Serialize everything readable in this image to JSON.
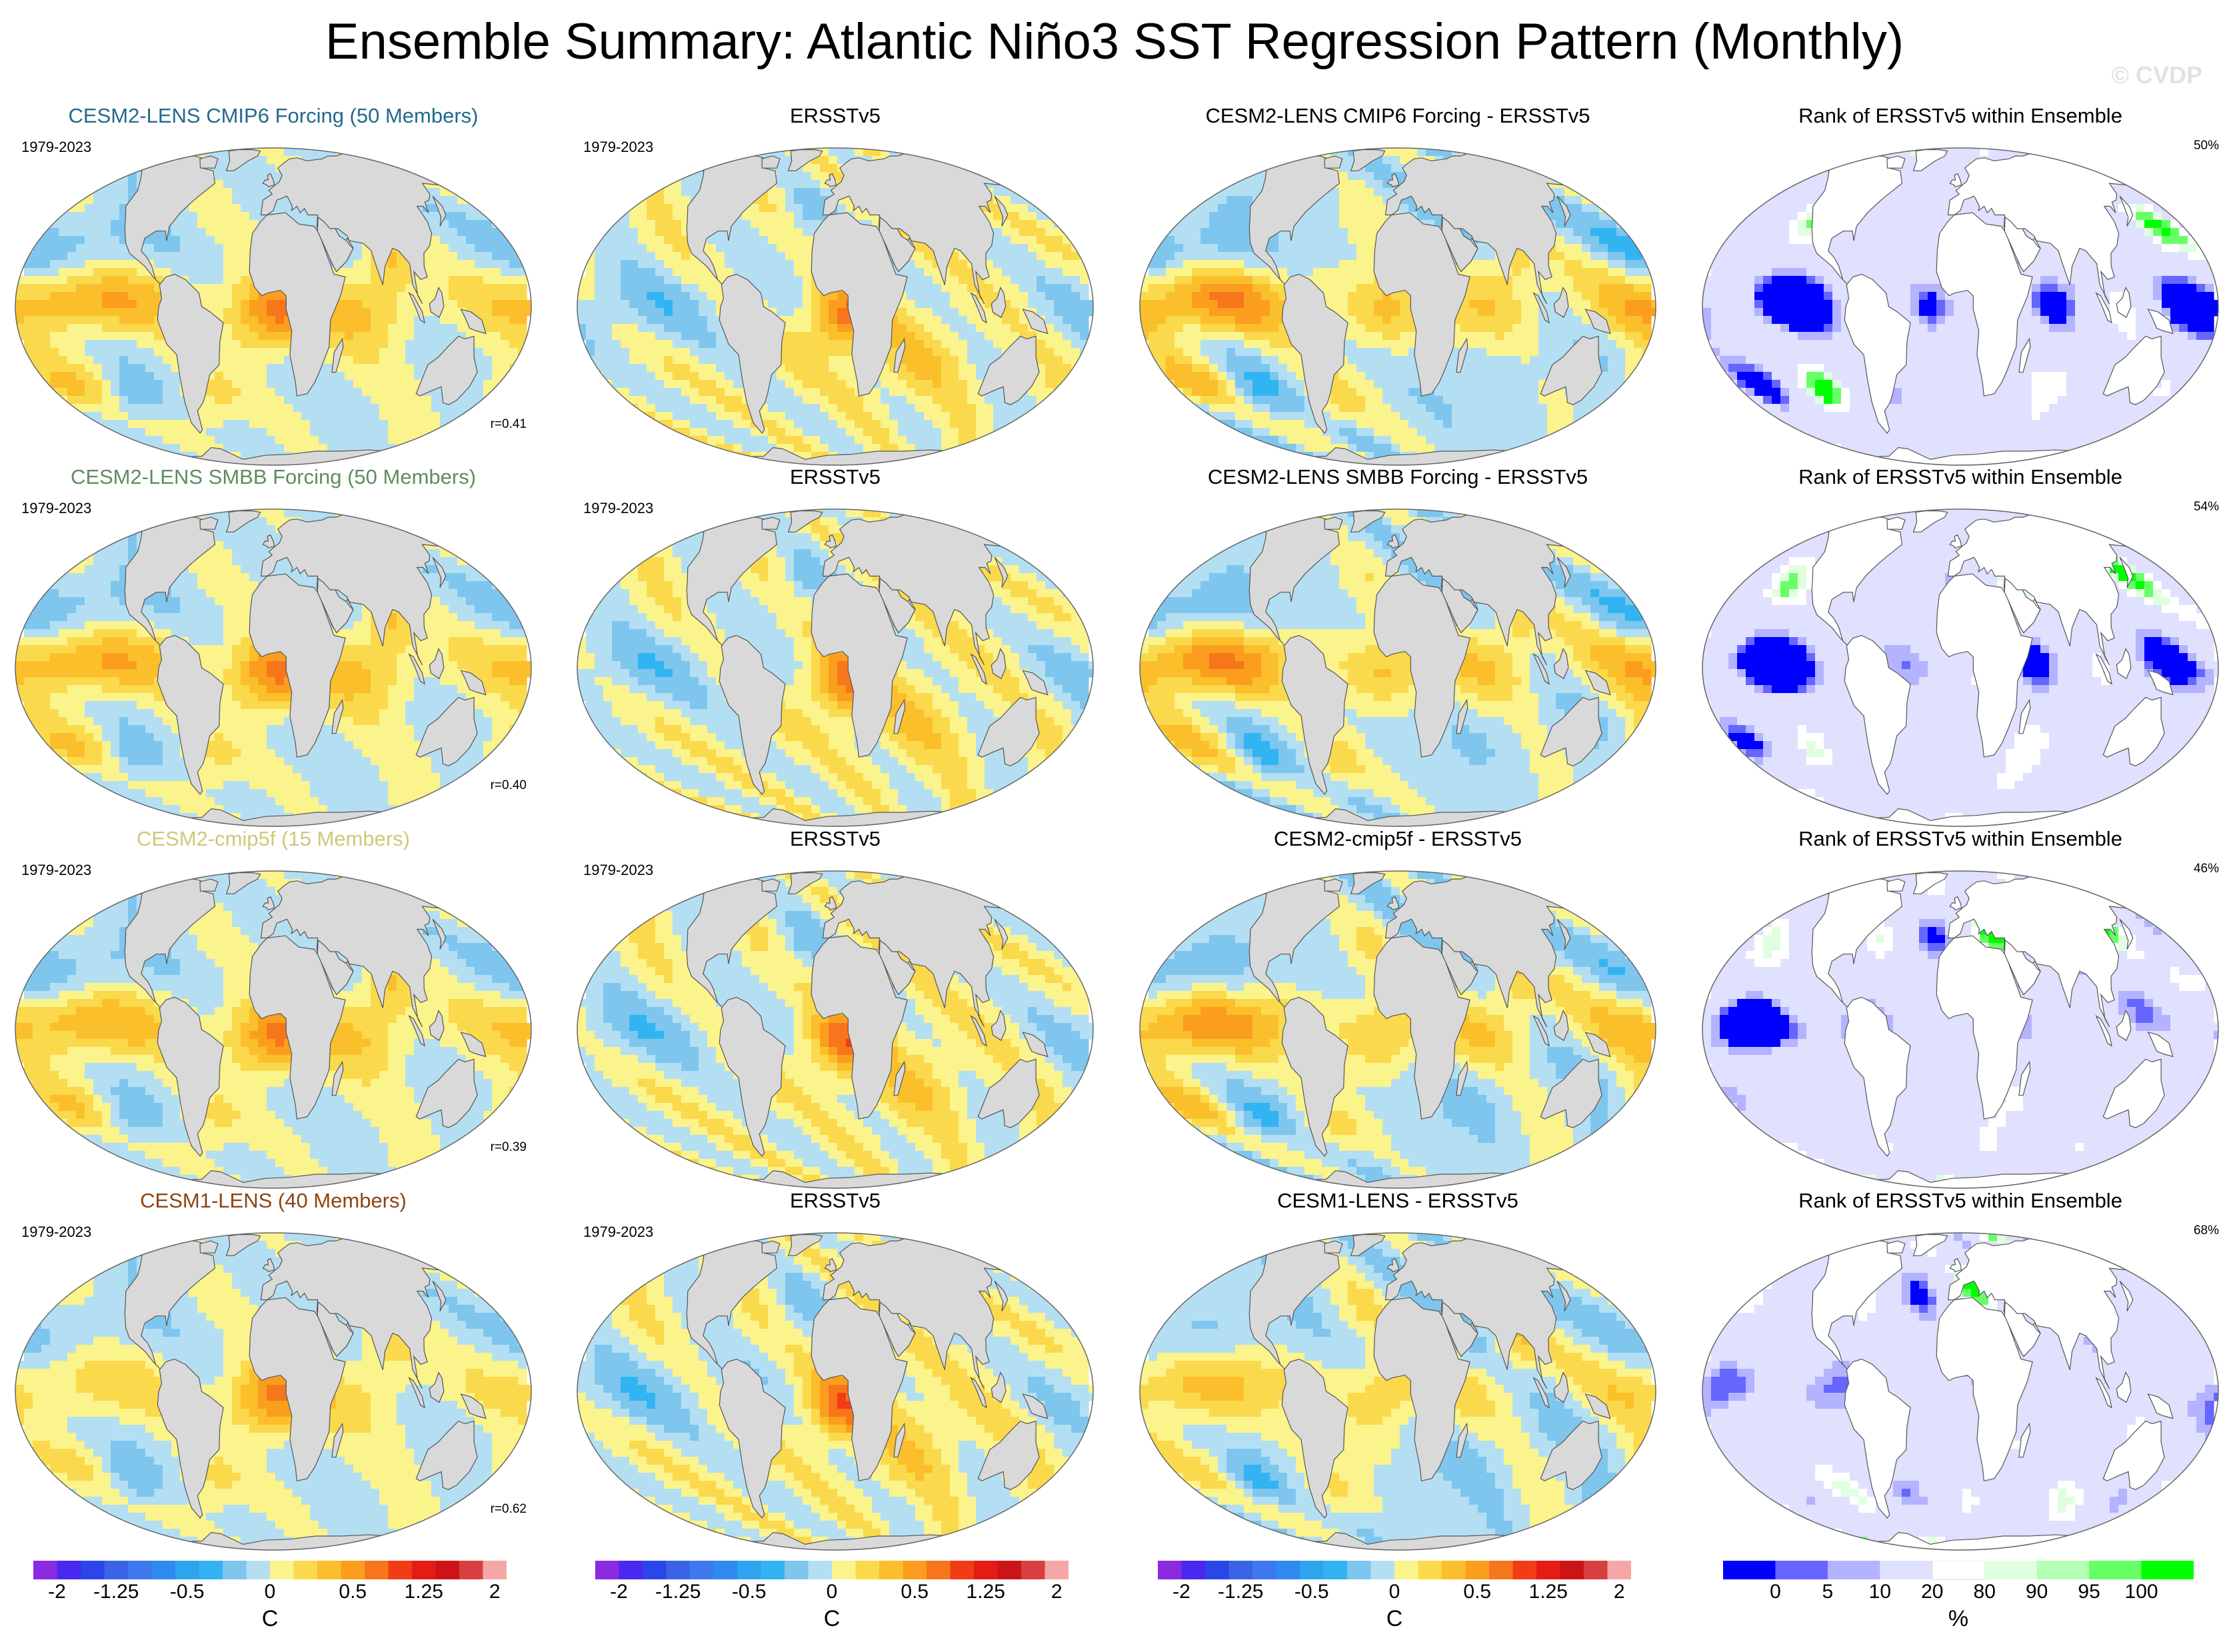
{
  "title": "Ensemble Summary: Atlantic Niño3 SST Regression Pattern (Monthly)",
  "watermark": "© CVDP",
  "period": "1979-2023",
  "rows": [
    {
      "model": "CESM2-LENS CMIP6 Forcing (50 Members)",
      "model_color": "#23698c",
      "obs": "ERSSTv5",
      "diff": "CESM2-LENS CMIP6 Forcing - ERSSTv5",
      "rank": "Rank of ERSSTv5 within Ensemble",
      "corr": "r=0.41",
      "pct": "50%"
    },
    {
      "model": "CESM2-LENS SMBB Forcing (50 Members)",
      "model_color": "#5f8c5f",
      "obs": "ERSSTv5",
      "diff": "CESM2-LENS SMBB Forcing - ERSSTv5",
      "rank": "Rank of ERSSTv5 within Ensemble",
      "corr": "r=0.40",
      "pct": "54%"
    },
    {
      "model": "CESM2-cmip5f (15 Members)",
      "model_color": "#cfc87a",
      "obs": "ERSSTv5",
      "diff": "CESM2-cmip5f - ERSSTv5",
      "rank": "Rank of ERSSTv5 within Ensemble",
      "corr": "r=0.39",
      "pct": "46%"
    },
    {
      "model": "CESM1-LENS (40 Members)",
      "model_color": "#8b4513",
      "obs": "ERSSTv5",
      "diff": "CESM1-LENS - ERSSTv5",
      "rank": "Rank of ERSSTv5 within Ensemble",
      "corr": "r=0.62",
      "pct": "68%"
    }
  ],
  "colorbar_sst": {
    "unit": "C",
    "ticks": [
      "-2",
      "-1.25",
      "-0.5",
      "0",
      "0.5",
      "1.25",
      "2"
    ],
    "colors": [
      "#8a2be2",
      "#4b27f2",
      "#2a45e8",
      "#3a63e6",
      "#3e78ee",
      "#2f8bf2",
      "#2ea4ef",
      "#33b4f2",
      "#7ec6ee",
      "#b4dff3",
      "#fbf38b",
      "#fbd94c",
      "#fbbf2b",
      "#fb9e1e",
      "#f7761b",
      "#f23c16",
      "#e51b15",
      "#cc1417",
      "#d84040",
      "#f5a7a7"
    ]
  },
  "colorbar_rank": {
    "unit": "%",
    "ticks": [
      "0",
      "5",
      "10",
      "20",
      "80",
      "90",
      "95",
      "100"
    ],
    "colors": [
      "#0000ff",
      "#6666ff",
      "#b3b3ff",
      "#e0e0ff",
      "#ffffff",
      "#e0ffe0",
      "#b3ffb3",
      "#66ff66",
      "#00ff00"
    ]
  },
  "chart_data": {
    "type": "heatmap",
    "layout": "4 rows x 4 columns of global maps",
    "columns": [
      "ensemble-mean regression",
      "observed regression (ERSSTv5)",
      "ensemble mean minus observed",
      "rank of observed within ensemble"
    ],
    "sst_scale_C": [
      -2,
      -1.75,
      -1.5,
      -1.25,
      -1,
      -0.75,
      -0.5,
      -0.25,
      0,
      0.25,
      0.5,
      0.75,
      1,
      1.25,
      1.5,
      1.75,
      2
    ],
    "rank_scale_pct": [
      0,
      5,
      10,
      20,
      80,
      90,
      95,
      100
    ],
    "pattern_correlation": [
      0.41,
      0.4,
      0.39,
      0.62
    ],
    "rank_summary_pct": [
      50,
      54,
      46,
      68
    ]
  }
}
